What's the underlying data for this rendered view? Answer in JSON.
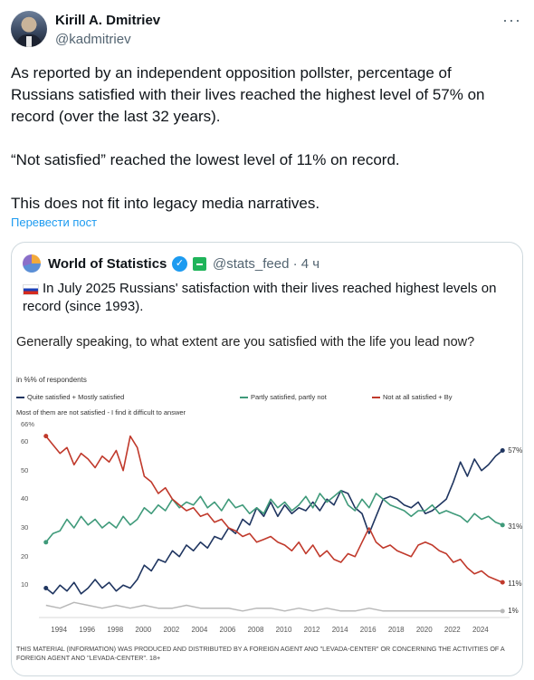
{
  "author": {
    "name": "Kirill A. Dmitriev",
    "handle": "@kadmitriev"
  },
  "more_icon": "more-horizontal-icon",
  "tweet": {
    "text": "As reported by an independent opposition pollster, percentage of Russians satisfied with their lives reached the highest level of 57% on record (over the last 32 years).\n\n“Not satisfied” reached the lowest level of 11% on record.\n\nThis does not fit into legacy media narratives.",
    "translate_label": "Перевести пост"
  },
  "quote": {
    "name": "World of Statistics",
    "handle_time": "@stats_feed · 4 ч",
    "text": "In July 2025 Russians' satisfaction with their lives reached highest levels on record (since 1993)."
  },
  "colors": {
    "satisfied": "#1f3560",
    "partly": "#3f9a7a",
    "not_satisfied": "#c0392b",
    "dk": "#b8b8b8"
  },
  "chart_data": {
    "type": "line",
    "title": "Generally speaking, to what extent are you satisfied with the life you lead now?",
    "unit_note": "in %% of respondents",
    "ylim": [
      0,
      66
    ],
    "yticks": [
      "66%",
      "60",
      "50",
      "40",
      "30",
      "20",
      "10"
    ],
    "xtick_labels": [
      "1994",
      "1996",
      "1998",
      "2000",
      "2002",
      "2004",
      "2006",
      "2008",
      "2010",
      "2012",
      "2014",
      "2016",
      "2018",
      "2020",
      "2022",
      "2024"
    ],
    "legend_extra": "Most of them are not satisfied - I find it difficult to answer",
    "disclaimer": "THIS MATERIAL (INFORMATION) WAS PRODUCED AND DISTRIBUTED BY A FOREIGN AGENT ANO \"LEVADA-CENTER\" OR CONCERNING THE ACTIVITIES OF A FOREIGN AGENT ANO \"LEVADA-CENTER\". 18+",
    "series": [
      {
        "name": "Quite satisfied + Mostly satisfied",
        "end_label": "57%",
        "points": [
          [
            1993.0,
            9
          ],
          [
            1993.5,
            7
          ],
          [
            1994.0,
            10
          ],
          [
            1994.5,
            8
          ],
          [
            1995.0,
            11
          ],
          [
            1995.5,
            7
          ],
          [
            1996.0,
            9
          ],
          [
            1996.5,
            12
          ],
          [
            1997.0,
            9
          ],
          [
            1997.5,
            11
          ],
          [
            1998.0,
            8
          ],
          [
            1998.5,
            10
          ],
          [
            1999.0,
            9
          ],
          [
            1999.5,
            12
          ],
          [
            2000.0,
            17
          ],
          [
            2000.5,
            15
          ],
          [
            2001.0,
            19
          ],
          [
            2001.5,
            18
          ],
          [
            2002.0,
            22
          ],
          [
            2002.5,
            20
          ],
          [
            2003.0,
            24
          ],
          [
            2003.5,
            22
          ],
          [
            2004.0,
            25
          ],
          [
            2004.5,
            23
          ],
          [
            2005.0,
            27
          ],
          [
            2005.5,
            26
          ],
          [
            2006.0,
            30
          ],
          [
            2006.5,
            28
          ],
          [
            2007.0,
            33
          ],
          [
            2007.5,
            31
          ],
          [
            2008.0,
            37
          ],
          [
            2008.5,
            34
          ],
          [
            2009.0,
            39
          ],
          [
            2009.5,
            34
          ],
          [
            2010.0,
            38
          ],
          [
            2010.5,
            35
          ],
          [
            2011.0,
            37
          ],
          [
            2011.5,
            36
          ],
          [
            2012.0,
            39
          ],
          [
            2012.5,
            36
          ],
          [
            2013.0,
            40
          ],
          [
            2013.5,
            38
          ],
          [
            2014.0,
            43
          ],
          [
            2014.5,
            42
          ],
          [
            2015.0,
            37
          ],
          [
            2015.5,
            35
          ],
          [
            2016.0,
            28
          ],
          [
            2016.5,
            34
          ],
          [
            2017.0,
            40
          ],
          [
            2017.5,
            41
          ],
          [
            2018.0,
            40
          ],
          [
            2018.5,
            38
          ],
          [
            2019.0,
            37
          ],
          [
            2019.5,
            39
          ],
          [
            2020.0,
            35
          ],
          [
            2020.5,
            36
          ],
          [
            2021.0,
            38
          ],
          [
            2021.5,
            40
          ],
          [
            2022.0,
            46
          ],
          [
            2022.5,
            53
          ],
          [
            2023.0,
            48
          ],
          [
            2023.5,
            54
          ],
          [
            2024.0,
            50
          ],
          [
            2024.5,
            52
          ],
          [
            2025.0,
            55
          ],
          [
            2025.5,
            57
          ]
        ]
      },
      {
        "name": "Partly satisfied, partly not",
        "end_label": "31%",
        "points": [
          [
            1993.0,
            25
          ],
          [
            1993.5,
            28
          ],
          [
            1994.0,
            29
          ],
          [
            1994.5,
            33
          ],
          [
            1995.0,
            30
          ],
          [
            1995.5,
            34
          ],
          [
            1996.0,
            31
          ],
          [
            1996.5,
            33
          ],
          [
            1997.0,
            30
          ],
          [
            1997.5,
            32
          ],
          [
            1998.0,
            30
          ],
          [
            1998.5,
            34
          ],
          [
            1999.0,
            31
          ],
          [
            1999.5,
            33
          ],
          [
            2000.0,
            37
          ],
          [
            2000.5,
            35
          ],
          [
            2001.0,
            38
          ],
          [
            2001.5,
            36
          ],
          [
            2002.0,
            40
          ],
          [
            2002.5,
            37
          ],
          [
            2003.0,
            39
          ],
          [
            2003.5,
            38
          ],
          [
            2004.0,
            41
          ],
          [
            2004.5,
            37
          ],
          [
            2005.0,
            39
          ],
          [
            2005.5,
            36
          ],
          [
            2006.0,
            40
          ],
          [
            2006.5,
            37
          ],
          [
            2007.0,
            38
          ],
          [
            2007.5,
            35
          ],
          [
            2008.0,
            37
          ],
          [
            2008.5,
            35
          ],
          [
            2009.0,
            40
          ],
          [
            2009.5,
            37
          ],
          [
            2010.0,
            39
          ],
          [
            2010.5,
            36
          ],
          [
            2011.0,
            38
          ],
          [
            2011.5,
            41
          ],
          [
            2012.0,
            37
          ],
          [
            2012.5,
            42
          ],
          [
            2013.0,
            39
          ],
          [
            2013.5,
            41
          ],
          [
            2014.0,
            43
          ],
          [
            2014.5,
            38
          ],
          [
            2015.0,
            36
          ],
          [
            2015.5,
            40
          ],
          [
            2016.0,
            37
          ],
          [
            2016.5,
            42
          ],
          [
            2017.0,
            40
          ],
          [
            2017.5,
            38
          ],
          [
            2018.0,
            37
          ],
          [
            2018.5,
            36
          ],
          [
            2019.0,
            34
          ],
          [
            2019.5,
            36
          ],
          [
            2020.0,
            36
          ],
          [
            2020.5,
            38
          ],
          [
            2021.0,
            35
          ],
          [
            2021.5,
            36
          ],
          [
            2022.0,
            35
          ],
          [
            2022.5,
            34
          ],
          [
            2023.0,
            32
          ],
          [
            2023.5,
            35
          ],
          [
            2024.0,
            33
          ],
          [
            2024.5,
            34
          ],
          [
            2025.0,
            32
          ],
          [
            2025.5,
            31
          ]
        ]
      },
      {
        "name": "Not at all satisfied + By",
        "end_label": "11%",
        "points": [
          [
            1993.0,
            62
          ],
          [
            1993.5,
            59
          ],
          [
            1994.0,
            56
          ],
          [
            1994.5,
            58
          ],
          [
            1995.0,
            52
          ],
          [
            1995.5,
            56
          ],
          [
            1996.0,
            54
          ],
          [
            1996.5,
            51
          ],
          [
            1997.0,
            55
          ],
          [
            1997.5,
            53
          ],
          [
            1998.0,
            57
          ],
          [
            1998.5,
            50
          ],
          [
            1999.0,
            62
          ],
          [
            1999.5,
            58
          ],
          [
            2000.0,
            48
          ],
          [
            2000.5,
            46
          ],
          [
            2001.0,
            42
          ],
          [
            2001.5,
            44
          ],
          [
            2002.0,
            40
          ],
          [
            2002.5,
            38
          ],
          [
            2003.0,
            36
          ],
          [
            2003.5,
            37
          ],
          [
            2004.0,
            34
          ],
          [
            2004.5,
            35
          ],
          [
            2005.0,
            32
          ],
          [
            2005.5,
            33
          ],
          [
            2006.0,
            30
          ],
          [
            2006.5,
            29
          ],
          [
            2007.0,
            27
          ],
          [
            2007.5,
            28
          ],
          [
            2008.0,
            25
          ],
          [
            2008.5,
            26
          ],
          [
            2009.0,
            27
          ],
          [
            2009.5,
            25
          ],
          [
            2010.0,
            24
          ],
          [
            2010.5,
            22
          ],
          [
            2011.0,
            25
          ],
          [
            2011.5,
            21
          ],
          [
            2012.0,
            24
          ],
          [
            2012.5,
            20
          ],
          [
            2013.0,
            22
          ],
          [
            2013.5,
            19
          ],
          [
            2014.0,
            18
          ],
          [
            2014.5,
            21
          ],
          [
            2015.0,
            20
          ],
          [
            2015.5,
            25
          ],
          [
            2016.0,
            30
          ],
          [
            2016.5,
            25
          ],
          [
            2017.0,
            23
          ],
          [
            2017.5,
            24
          ],
          [
            2018.0,
            22
          ],
          [
            2018.5,
            21
          ],
          [
            2019.0,
            20
          ],
          [
            2019.5,
            24
          ],
          [
            2020.0,
            25
          ],
          [
            2020.5,
            24
          ],
          [
            2021.0,
            22
          ],
          [
            2021.5,
            21
          ],
          [
            2022.0,
            18
          ],
          [
            2022.5,
            19
          ],
          [
            2023.0,
            16
          ],
          [
            2023.5,
            14
          ],
          [
            2024.0,
            15
          ],
          [
            2024.5,
            13
          ],
          [
            2025.0,
            12
          ],
          [
            2025.5,
            11
          ]
        ]
      },
      {
        "name": "Most of them are not satisfied - I find it difficult to answer",
        "end_label": "1%",
        "points": [
          [
            1993.0,
            3
          ],
          [
            1994.0,
            2
          ],
          [
            1995.0,
            4
          ],
          [
            1996.0,
            3
          ],
          [
            1997.0,
            2
          ],
          [
            1998.0,
            3
          ],
          [
            1999.0,
            2
          ],
          [
            2000.0,
            3
          ],
          [
            2001.0,
            2
          ],
          [
            2002.0,
            2
          ],
          [
            2003.0,
            3
          ],
          [
            2004.0,
            2
          ],
          [
            2005.0,
            2
          ],
          [
            2006.0,
            2
          ],
          [
            2007.0,
            1
          ],
          [
            2008.0,
            2
          ],
          [
            2009.0,
            2
          ],
          [
            2010.0,
            1
          ],
          [
            2011.0,
            2
          ],
          [
            2012.0,
            1
          ],
          [
            2013.0,
            2
          ],
          [
            2014.0,
            1
          ],
          [
            2015.0,
            1
          ],
          [
            2016.0,
            2
          ],
          [
            2017.0,
            1
          ],
          [
            2018.0,
            1
          ],
          [
            2019.0,
            1
          ],
          [
            2020.0,
            1
          ],
          [
            2021.0,
            1
          ],
          [
            2022.0,
            1
          ],
          [
            2023.0,
            1
          ],
          [
            2024.0,
            1
          ],
          [
            2025.5,
            1
          ]
        ]
      }
    ]
  }
}
